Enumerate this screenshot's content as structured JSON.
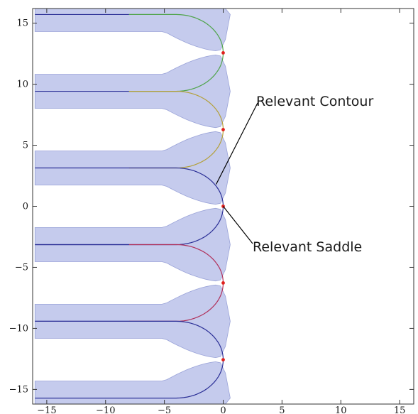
{
  "chart_data": {
    "type": "area",
    "xlim": [
      -16.2,
      16.2
    ],
    "ylim": [
      -16.2,
      16.2
    ],
    "xticks": [
      -15,
      -10,
      -5,
      0,
      5,
      10,
      15
    ],
    "yticks": [
      15,
      10,
      5,
      0,
      -5,
      -10,
      -15
    ],
    "xtick_labels": [
      "−15",
      "−10",
      "−5",
      "0",
      "5",
      "10",
      "15"
    ],
    "ytick_labels": [
      "15",
      "10",
      "5",
      "0",
      "−5",
      "−10",
      "−15"
    ],
    "grid": false,
    "colors": {
      "region_fill": "#c5cbed",
      "region_stroke": "#9aa3d8",
      "saddle": "#e0201c",
      "contour_blue": "#2b2f96",
      "contour_green": "#4fa44a",
      "contour_olive": "#b4a03a",
      "contour_red": "#b0305a",
      "annotation_line": "#000000"
    },
    "regions": [
      {
        "center": 15.71,
        "edge": -16,
        "tip": 0.6
      },
      {
        "center": 9.42,
        "edge": -16,
        "tip": 0.6
      },
      {
        "center": 3.14,
        "edge": -16,
        "tip": 0.6
      },
      {
        "center": -3.14,
        "edge": -16,
        "tip": 0.6
      },
      {
        "center": -9.42,
        "edge": -16,
        "tip": 0.6
      },
      {
        "center": -15.71,
        "edge": -16,
        "tip": 0.6
      }
    ],
    "saddles": [
      {
        "x": 0,
        "y": 12.57
      },
      {
        "x": 0,
        "y": 6.28
      },
      {
        "x": 0,
        "y": 0
      },
      {
        "x": 0,
        "y": -6.28
      },
      {
        "x": 0,
        "y": -12.57
      }
    ],
    "contours": [
      {
        "color_key": "contour_green",
        "x_start": -8,
        "y_from": 15.71,
        "y_to": 9.42
      },
      {
        "color_key": "contour_olive",
        "x_start": -8,
        "y_from": 9.42,
        "y_to": 3.14
      },
      {
        "color_key": "contour_blue",
        "x_start": -16,
        "y_from": 3.14,
        "y_to": -3.14
      },
      {
        "color_key": "contour_red",
        "x_start": -8,
        "y_from": -3.14,
        "y_to": -9.42
      },
      {
        "color_key": "contour_blue",
        "x_start": -16,
        "y_from": -9.42,
        "y_to": -15.71
      }
    ],
    "lines": [
      {
        "y": 15.71,
        "x_from": -16,
        "x_to": -8,
        "color_key": "contour_blue"
      },
      {
        "y": 9.42,
        "x_from": -16,
        "x_to": -8,
        "color_key": "contour_blue"
      },
      {
        "y": -3.14,
        "x_from": -16,
        "x_to": -8,
        "color_key": "contour_blue"
      },
      {
        "y": -9.42,
        "x_from": -16,
        "x_to": -8,
        "color_key": "contour_blue"
      }
    ],
    "annotations": [
      {
        "text": "Relevant Contour",
        "point": [
          -0.6,
          1.8
        ]
      },
      {
        "text": "Relevant Saddle",
        "point": [
          0,
          0
        ]
      }
    ]
  }
}
